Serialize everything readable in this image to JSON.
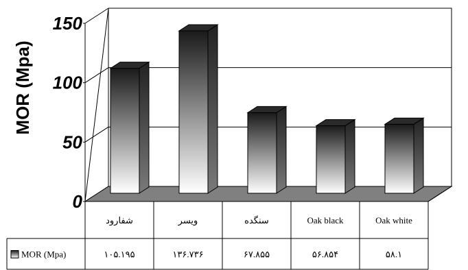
{
  "chart_data": {
    "type": "bar",
    "ylabel": "MOR (Mpa)",
    "ylim": [
      0,
      150
    ],
    "yticks": [
      "0",
      "50",
      "100",
      "150"
    ],
    "categories": [
      "شفارود",
      "ویسر",
      "سنگده",
      "Oak black",
      "Oak white"
    ],
    "series": [
      {
        "name": "MOR (Mpa)",
        "values": [
          105.195,
          136.736,
          67.855,
          56.854,
          58.1
        ],
        "value_labels": [
          "۱۰۵.۱۹۵",
          "۱۳۶.۷۳۶",
          "۶۷.۸۵۵",
          "۵۶.۸۵۴",
          "۵۸.۱"
        ]
      }
    ],
    "grid": true,
    "style": "3d-bar-with-data-table"
  }
}
